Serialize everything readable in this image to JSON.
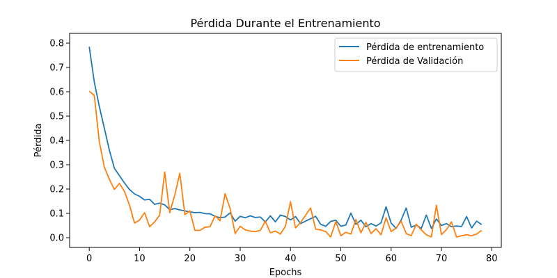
{
  "chart_data": {
    "type": "line",
    "title": "Pérdida Durante el Entrenamiento",
    "xlabel": "Epochs",
    "ylabel": "Pérdida",
    "xlim": [
      -3.9,
      81.9
    ],
    "ylim": [
      -0.04,
      0.84
    ],
    "xticks": [
      0,
      10,
      20,
      30,
      40,
      50,
      60,
      70,
      80
    ],
    "yticks": [
      0.0,
      0.1,
      0.2,
      0.3,
      0.4,
      0.5,
      0.6,
      0.7,
      0.8
    ],
    "grid": false,
    "legend_position": "top-right",
    "series": [
      {
        "name": "Pérdida de entrenamiento",
        "color": "#1f77b4",
        "values": [
          0.785,
          0.64,
          0.54,
          0.45,
          0.36,
          0.285,
          0.255,
          0.225,
          0.198,
          0.18,
          0.17,
          0.155,
          0.158,
          0.137,
          0.142,
          0.135,
          0.115,
          0.12,
          0.114,
          0.11,
          0.106,
          0.103,
          0.104,
          0.099,
          0.098,
          0.088,
          0.082,
          0.085,
          0.102,
          0.068,
          0.088,
          0.082,
          0.09,
          0.083,
          0.085,
          0.065,
          0.09,
          0.065,
          0.093,
          0.087,
          0.073,
          0.087,
          0.058,
          0.068,
          0.078,
          0.088,
          0.055,
          0.047,
          0.067,
          0.072,
          0.047,
          0.052,
          0.101,
          0.055,
          0.072,
          0.045,
          0.058,
          0.048,
          0.061,
          0.127,
          0.06,
          0.038,
          0.073,
          0.122,
          0.043,
          0.052,
          0.038,
          0.093,
          0.038,
          0.077,
          0.05,
          0.058,
          0.045,
          0.048,
          0.046,
          0.087,
          0.04,
          0.068,
          0.054
        ]
      },
      {
        "name": "Pérdida de Validación",
        "color": "#ff7f0e",
        "values": [
          0.602,
          0.585,
          0.395,
          0.29,
          0.24,
          0.198,
          0.223,
          0.19,
          0.134,
          0.06,
          0.072,
          0.103,
          0.045,
          0.065,
          0.093,
          0.27,
          0.103,
          0.175,
          0.265,
          0.095,
          0.11,
          0.03,
          0.03,
          0.043,
          0.045,
          0.09,
          0.07,
          0.181,
          0.12,
          0.017,
          0.047,
          0.032,
          0.027,
          0.025,
          0.03,
          0.068,
          0.02,
          0.027,
          0.015,
          0.047,
          0.148,
          0.04,
          0.062,
          0.092,
          0.122,
          0.035,
          0.032,
          0.025,
          0.003,
          0.067,
          0.008,
          0.022,
          0.015,
          0.075,
          0.02,
          0.063,
          0.017,
          0.037,
          0.012,
          0.082,
          0.025,
          0.04,
          0.068,
          0.017,
          0.008,
          0.055,
          0.032,
          0.012,
          0.003,
          0.133,
          0.013,
          0.033,
          0.065,
          0.003,
          0.008,
          0.012,
          0.008,
          0.015,
          0.03
        ]
      }
    ]
  }
}
